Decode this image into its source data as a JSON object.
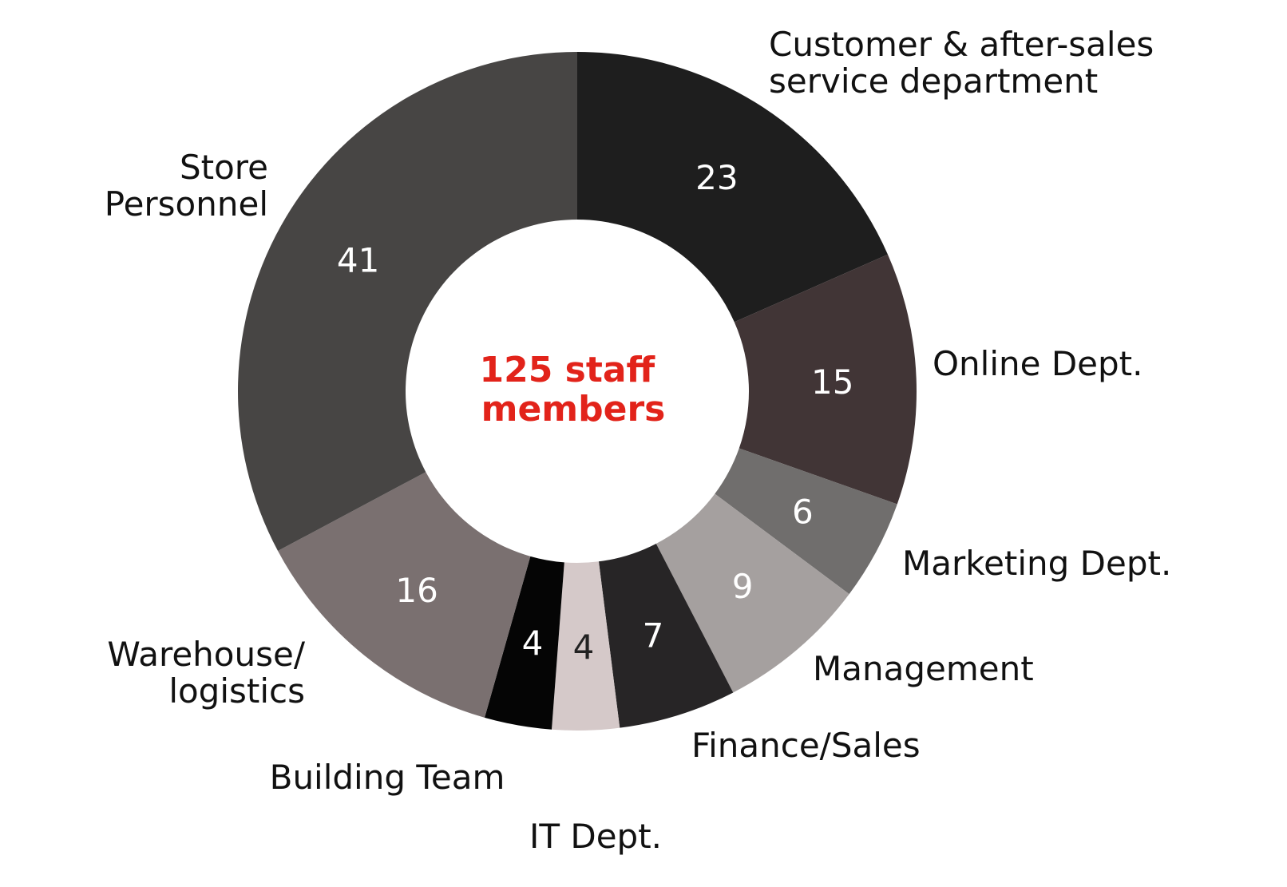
{
  "chart_data": {
    "type": "donut",
    "center_text": [
      "125 staff",
      "members"
    ],
    "center_color": "#e2231a",
    "slices": [
      {
        "label": "Customer & after-sales service department",
        "value": 23,
        "color": "#1e1e1e"
      },
      {
        "label": "Online Dept.",
        "value": 15,
        "color": "#413536"
      },
      {
        "label": "Marketing Dept.",
        "value": 6,
        "color": "#706e6d"
      },
      {
        "label": "Management",
        "value": 9,
        "color": "#a5a09f"
      },
      {
        "label": "Finance/Sales",
        "value": 7,
        "color": "#272526"
      },
      {
        "label": "IT Dept.",
        "value": 4,
        "color": "#d5c9c9"
      },
      {
        "label": "Building Team",
        "value": 4,
        "color": "#050505"
      },
      {
        "label": "Warehouse/ logistics",
        "value": 16,
        "color": "#7a7070"
      },
      {
        "label": "Store Personnel",
        "value": 41,
        "color": "#474544"
      }
    ],
    "value_label_color": "#ffffff",
    "value_label_dark_color": "#222222"
  }
}
